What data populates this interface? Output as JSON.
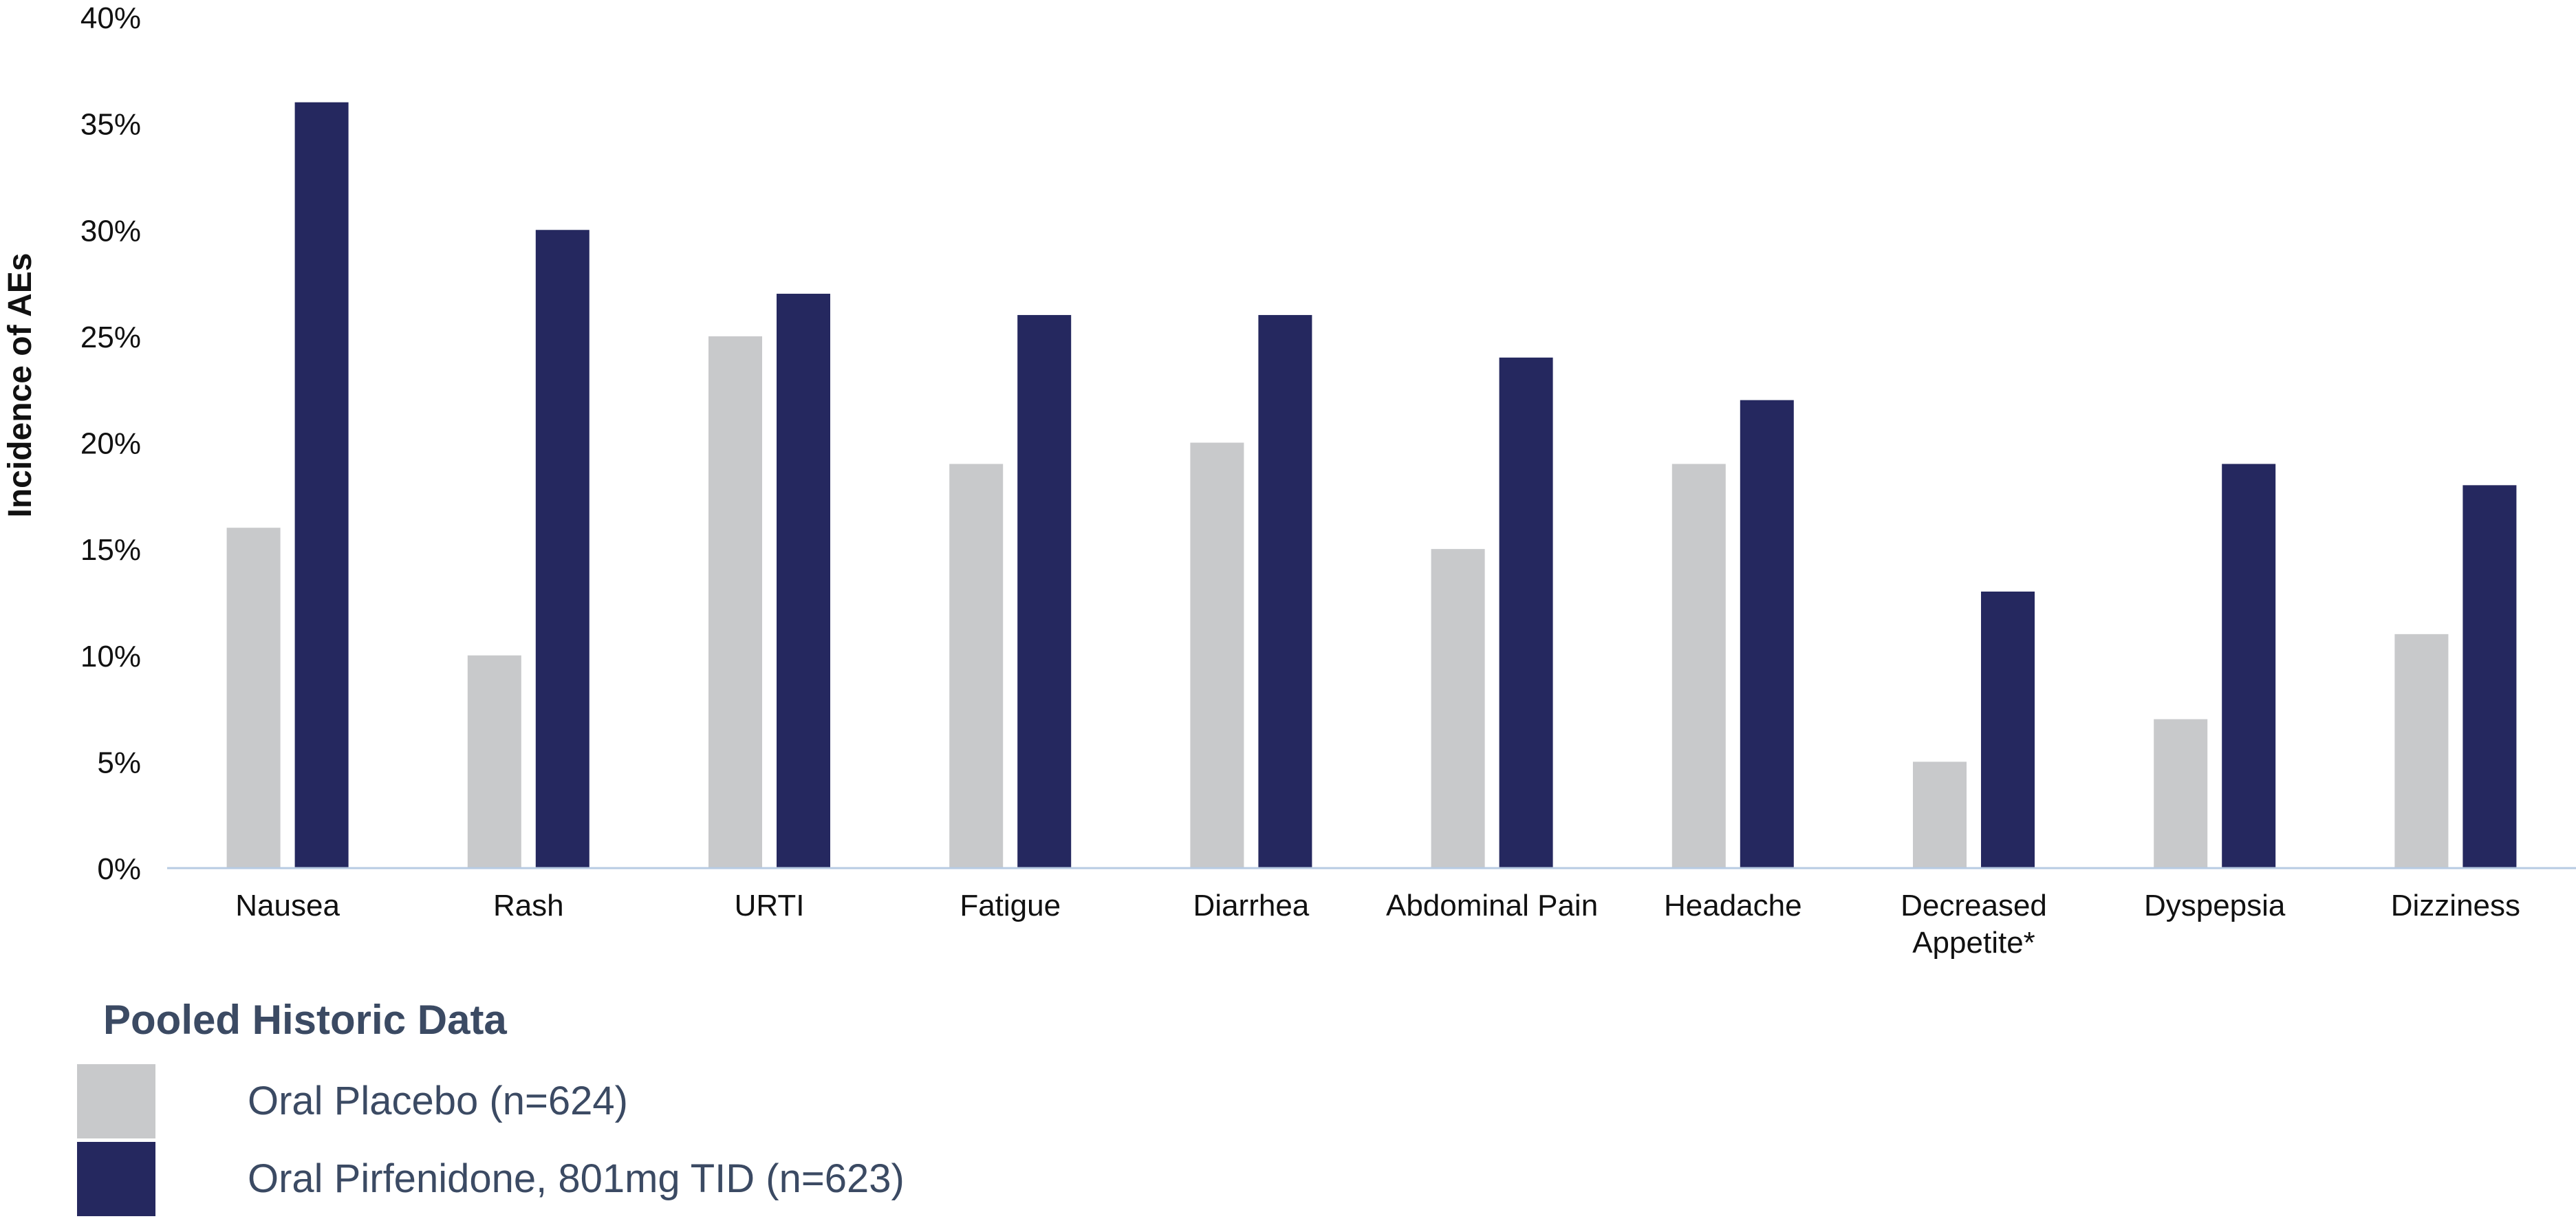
{
  "chart_data": {
    "type": "bar",
    "title": "",
    "xlabel": "",
    "ylabel": "Incidence of AEs",
    "ylim": [
      0,
      40
    ],
    "yticks": [
      "0%",
      "5%",
      "10%",
      "15%",
      "20%",
      "25%",
      "30%",
      "35%",
      "40%"
    ],
    "grid": false,
    "legend_position": "bottom-left",
    "categories": [
      [
        "Nausea"
      ],
      [
        "Rash"
      ],
      [
        "URTI"
      ],
      [
        "Fatigue"
      ],
      [
        "Diarrhea"
      ],
      [
        "Abdominal Pain"
      ],
      [
        "Headache"
      ],
      [
        "Decreased",
        "Appetite*"
      ],
      [
        "Dyspepsia"
      ],
      [
        "Dizziness"
      ]
    ],
    "series": [
      {
        "name": "Oral Placebo (n=624)",
        "color": "#c8c9cb",
        "values": [
          16,
          10,
          25,
          19,
          20,
          15,
          19,
          5,
          7,
          11
        ]
      },
      {
        "name": "Oral Pirfenidone, 801mg TID (n=623)",
        "color": "#25285f",
        "values": [
          36,
          30,
          27,
          26,
          26,
          24,
          22,
          13,
          19,
          18
        ]
      }
    ],
    "axis_color": "#b7cbe3"
  },
  "legend": {
    "title": "Pooled Historic Data"
  }
}
